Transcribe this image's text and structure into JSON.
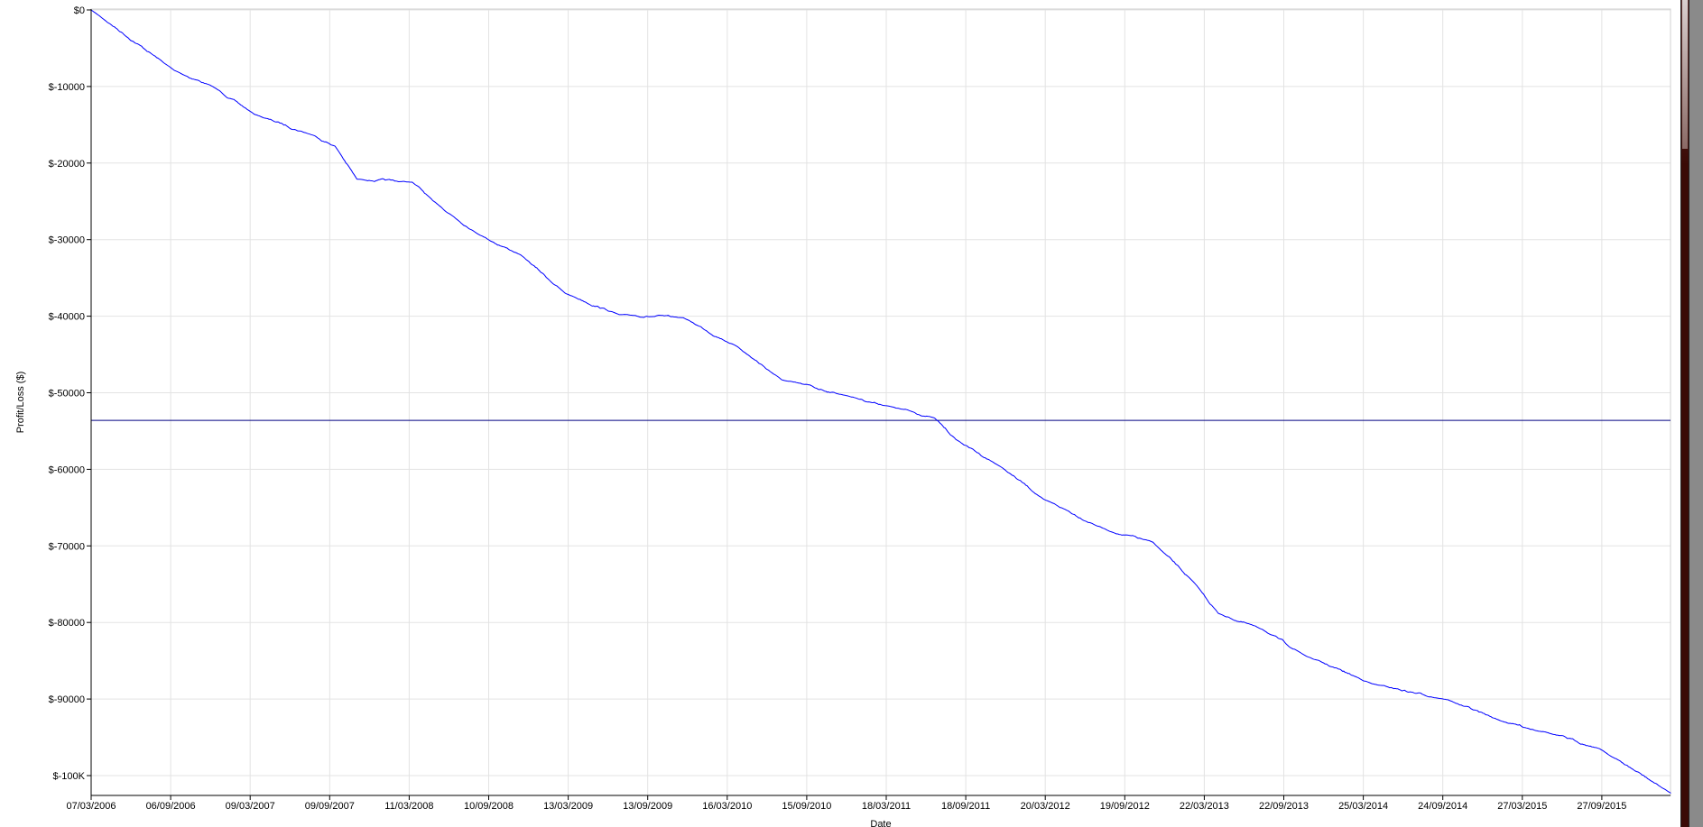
{
  "chart_data": {
    "type": "line",
    "title": "",
    "xlabel": "Date",
    "ylabel": "Profit/Loss ($)",
    "ylim": [
      -102800,
      0
    ],
    "xlim": [
      "2006-03-07",
      "2016-02-12"
    ],
    "grid": true,
    "y_ticks": [
      {
        "value": 0,
        "label": "$0"
      },
      {
        "value": -10000,
        "label": "$-10000"
      },
      {
        "value": -20000,
        "label": "$-20000"
      },
      {
        "value": -30000,
        "label": "$-30000"
      },
      {
        "value": -40000,
        "label": "$-40000"
      },
      {
        "value": -50000,
        "label": "$-50000"
      },
      {
        "value": -60000,
        "label": "$-60000"
      },
      {
        "value": -70000,
        "label": "$-70000"
      },
      {
        "value": -80000,
        "label": "$-80000"
      },
      {
        "value": -90000,
        "label": "$-90000"
      },
      {
        "value": -100000,
        "label": "$-100K"
      }
    ],
    "x_ticks": [
      "07/03/2006",
      "06/09/2006",
      "09/03/2007",
      "09/09/2007",
      "11/03/2008",
      "10/09/2008",
      "13/03/2009",
      "13/09/2009",
      "16/03/2010",
      "15/09/2010",
      "18/03/2011",
      "18/09/2011",
      "20/03/2012",
      "19/09/2012",
      "22/03/2013",
      "22/09/2013",
      "25/03/2014",
      "24/09/2014",
      "27/03/2015",
      "27/09/2015"
    ],
    "reference_line": {
      "value": -53600,
      "color": "#000080"
    },
    "series": [
      {
        "color": "#0000ff",
        "points": [
          [
            "2006-03-07",
            0
          ],
          [
            "2006-09-14",
            -7900
          ],
          [
            "2006-12-11",
            -10000
          ],
          [
            "2007-03-16",
            -13600
          ],
          [
            "2007-07-31",
            -16400
          ],
          [
            "2007-09-18",
            -17800
          ],
          [
            "2007-11-07",
            -22100
          ],
          [
            "2008-03-13",
            -22500
          ],
          [
            "2008-04-29",
            -24900
          ],
          [
            "2008-08-09",
            -29200
          ],
          [
            "2008-11-17",
            -32000
          ],
          [
            "2009-02-27",
            -37000
          ],
          [
            "2009-07-01",
            -39800
          ],
          [
            "2009-11-25",
            -40200
          ],
          [
            "2010-03-30",
            -44000
          ],
          [
            "2010-07-09",
            -48300
          ],
          [
            "2010-12-07",
            -50400
          ],
          [
            "2011-03-16",
            -51800
          ],
          [
            "2011-06-25",
            -53300
          ],
          [
            "2011-08-13",
            -56100
          ],
          [
            "2011-11-22",
            -59600
          ],
          [
            "2012-03-01",
            -63900
          ],
          [
            "2012-07-31",
            -68100
          ],
          [
            "2012-11-07",
            -69500
          ],
          [
            "2013-02-16",
            -75200
          ],
          [
            "2013-04-06",
            -78800
          ],
          [
            "2013-07-16",
            -80900
          ],
          [
            "2013-10-25",
            -84400
          ],
          [
            "2014-03-25",
            -88000
          ],
          [
            "2014-09-15",
            -90100
          ],
          [
            "2015-01-17",
            -92900
          ],
          [
            "2015-04-27",
            -94300
          ],
          [
            "2015-08-30",
            -96500
          ],
          [
            "2016-02-09",
            -102300
          ]
        ]
      }
    ]
  }
}
